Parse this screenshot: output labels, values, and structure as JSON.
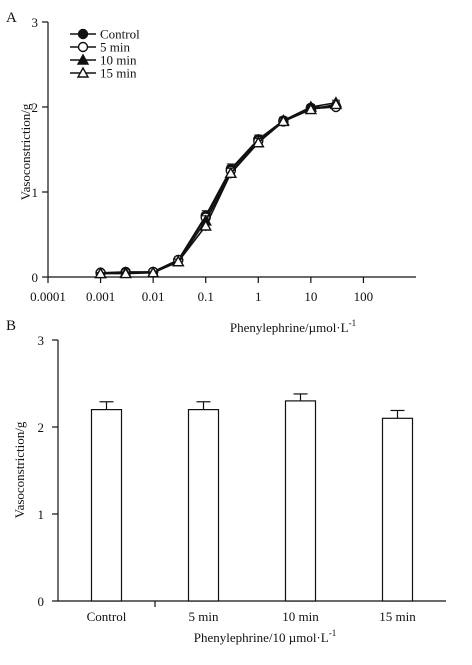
{
  "chart_data": [
    {
      "panel_label": "A",
      "type": "line",
      "xscale": "log",
      "x_ticks": [
        "0.0001",
        "0.001",
        "0.01",
        "0.1",
        "1",
        "10",
        "100"
      ],
      "xlabel": "Phenylephrine/µmol·L",
      "xlabel_sup": "-1",
      "ylabel": "Vasoconstriction/g",
      "ylim": [
        0,
        3
      ],
      "y_ticks": [
        "0",
        "1",
        "2",
        "3"
      ],
      "legend_position": "top-left",
      "x": [
        0.001,
        0.003,
        0.01,
        0.03,
        0.1,
        0.3,
        1,
        3,
        10,
        30
      ],
      "series": [
        {
          "name": "Control",
          "marker": "filled-circle",
          "values": [
            0.05,
            0.06,
            0.06,
            0.2,
            0.72,
            1.27,
            1.62,
            1.84,
            1.99,
            2.01
          ],
          "errors": [
            0.01,
            0.01,
            0.01,
            0.03,
            0.06,
            0.06,
            0.05,
            0.04,
            0.03,
            0.03
          ]
        },
        {
          "name": "5 min",
          "marker": "open-circle",
          "values": [
            0.05,
            0.05,
            0.06,
            0.2,
            0.7,
            1.25,
            1.6,
            1.83,
            1.98,
            2.0
          ],
          "errors": [
            0.01,
            0.01,
            0.01,
            0.03,
            0.06,
            0.06,
            0.05,
            0.04,
            0.03,
            0.03
          ]
        },
        {
          "name": "10 min",
          "marker": "filled-triangle",
          "values": [
            0.04,
            0.05,
            0.05,
            0.18,
            0.66,
            1.22,
            1.58,
            1.84,
            2.0,
            2.05
          ],
          "errors": [
            0.01,
            0.01,
            0.01,
            0.03,
            0.06,
            0.06,
            0.05,
            0.04,
            0.03,
            0.03
          ]
        },
        {
          "name": "15 min",
          "marker": "open-triangle",
          "values": [
            0.04,
            0.04,
            0.05,
            0.18,
            0.6,
            1.22,
            1.58,
            1.83,
            1.97,
            2.03
          ],
          "errors": [
            0.01,
            0.01,
            0.01,
            0.03,
            0.06,
            0.06,
            0.05,
            0.04,
            0.03,
            0.03
          ]
        }
      ]
    },
    {
      "panel_label": "B",
      "type": "bar",
      "categories": [
        "Control",
        "5 min",
        "10 min",
        "15 min"
      ],
      "values": [
        2.2,
        2.2,
        2.3,
        2.1
      ],
      "errors": [
        0.09,
        0.09,
        0.08,
        0.09
      ],
      "xlabel": "Phenylephrine/10 µmol·L",
      "xlabel_sup": "-1",
      "ylabel": "Vasoconstriction/g",
      "ylim": [
        0,
        3
      ],
      "y_ticks": [
        "0",
        "1",
        "2",
        "3"
      ]
    }
  ]
}
